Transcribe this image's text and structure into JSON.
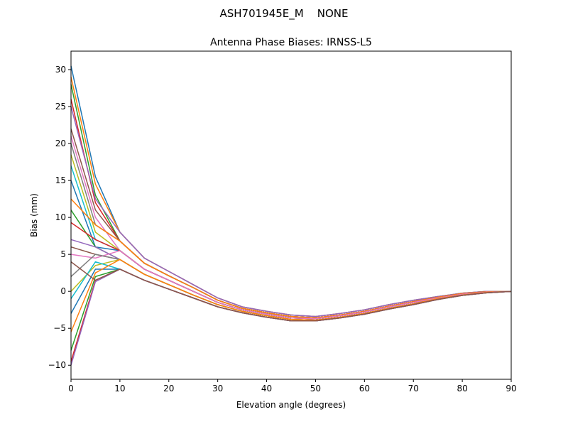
{
  "chart_data": {
    "type": "line",
    "suptitle": "ASH701945E_M    NONE",
    "title": "Antenna Phase Biases: IRNSS-L5",
    "xlabel": "Elevation angle (degrees)",
    "ylabel": "Bias (mm)",
    "xlim": [
      0,
      90
    ],
    "ylim": [
      -11.9,
      32.5
    ],
    "xticks": [
      0,
      10,
      20,
      30,
      40,
      50,
      60,
      70,
      80,
      90
    ],
    "yticks": [
      -10,
      -5,
      0,
      5,
      10,
      15,
      20,
      25,
      30
    ],
    "grid": false,
    "colors": [
      "#1f77b4",
      "#ff7f0e",
      "#2ca02c",
      "#d62728",
      "#9467bd",
      "#8c564b",
      "#e377c2",
      "#7f7f7f",
      "#bcbd22",
      "#17becf"
    ],
    "x": [
      0,
      5,
      10,
      15,
      20,
      25,
      30,
      35,
      40,
      45,
      50,
      55,
      60,
      65,
      70,
      75,
      80,
      85,
      90
    ],
    "series": [
      {
        "values": [
          30.5,
          15.5,
          8,
          4.5,
          2.7,
          0.9,
          -0.9,
          -2.1,
          -2.7,
          -3.2,
          -3.4,
          -3.0,
          -2.5,
          -1.8,
          -1.2,
          -0.7,
          -0.25,
          0,
          0
        ]
      },
      {
        "values": [
          29,
          14.5,
          8,
          4.5,
          2.7,
          0.9,
          -0.9,
          -2.1,
          -2.7,
          -3.2,
          -3.4,
          -3.0,
          -2.5,
          -1.8,
          -1.2,
          -0.7,
          -0.25,
          0,
          0
        ]
      },
      {
        "values": [
          28,
          13,
          6.8,
          3.8,
          2.1,
          0.5,
          -1.2,
          -2.3,
          -2.9,
          -3.4,
          -3.6,
          -3.2,
          -2.7,
          -2.0,
          -1.4,
          -0.8,
          -0.3,
          -0.05,
          0
        ]
      },
      {
        "values": [
          26,
          12,
          6.8,
          3.8,
          2.1,
          0.5,
          -1.2,
          -2.3,
          -2.9,
          -3.4,
          -3.6,
          -3.2,
          -2.7,
          -2.0,
          -1.4,
          -0.8,
          -0.3,
          -0.05,
          0
        ]
      },
      {
        "values": [
          25,
          12.5,
          8,
          4.5,
          2.7,
          0.9,
          -0.9,
          -2.1,
          -2.7,
          -3.2,
          -3.4,
          -3.0,
          -2.5,
          -1.8,
          -1.2,
          -0.7,
          -0.25,
          0,
          0
        ]
      },
      {
        "values": [
          22,
          11,
          6.8,
          3.8,
          2.1,
          0.5,
          -1.2,
          -2.3,
          -2.9,
          -3.4,
          -3.6,
          -3.2,
          -2.7,
          -2.0,
          -1.4,
          -0.8,
          -0.3,
          -0.05,
          0
        ]
      },
      {
        "values": [
          21,
          10,
          5.5,
          3.0,
          1.5,
          0,
          -1.5,
          -2.5,
          -3.1,
          -3.6,
          -3.7,
          -3.3,
          -2.8,
          -2.1,
          -1.5,
          -0.9,
          -0.4,
          -0.1,
          0
        ]
      },
      {
        "values": [
          20,
          9,
          6.8,
          3.8,
          2.1,
          0.5,
          -1.2,
          -2.3,
          -2.9,
          -3.4,
          -3.6,
          -3.2,
          -2.7,
          -2.0,
          -1.4,
          -0.8,
          -0.3,
          -0.05,
          0
        ]
      },
      {
        "values": [
          18.5,
          8,
          5.5,
          3.0,
          1.5,
          0,
          -1.5,
          -2.5,
          -3.1,
          -3.6,
          -3.7,
          -3.3,
          -2.8,
          -2.1,
          -1.5,
          -0.9,
          -0.4,
          -0.1,
          0
        ]
      },
      {
        "values": [
          17,
          7,
          5.5,
          3.0,
          1.5,
          0,
          -1.5,
          -2.5,
          -3.1,
          -3.6,
          -3.7,
          -3.3,
          -2.8,
          -2.1,
          -1.5,
          -0.9,
          -0.4,
          -0.1,
          0
        ]
      },
      {
        "values": [
          15,
          6,
          5.5,
          3.0,
          1.5,
          0,
          -1.5,
          -2.5,
          -3.1,
          -3.6,
          -3.7,
          -3.3,
          -2.8,
          -2.1,
          -1.5,
          -0.9,
          -0.4,
          -0.1,
          0
        ]
      },
      {
        "values": [
          12.5,
          9,
          6.8,
          3.8,
          2.1,
          0.5,
          -1.2,
          -2.3,
          -2.9,
          -3.4,
          -3.6,
          -3.2,
          -2.7,
          -2.0,
          -1.4,
          -0.8,
          -0.3,
          -0.05,
          0
        ]
      },
      {
        "values": [
          11,
          6,
          4.3,
          2.3,
          0.9,
          -0.5,
          -1.8,
          -2.7,
          -3.3,
          -3.8,
          -3.9,
          -3.5,
          -3.0,
          -2.3,
          -1.7,
          -1.0,
          -0.5,
          -0.15,
          0
        ]
      },
      {
        "values": [
          9.3,
          7,
          5.5,
          3.0,
          1.5,
          0,
          -1.5,
          -2.5,
          -3.1,
          -3.6,
          -3.7,
          -3.3,
          -2.8,
          -2.1,
          -1.5,
          -0.9,
          -0.4,
          -0.1,
          0
        ]
      },
      {
        "values": [
          7,
          6,
          4.3,
          2.3,
          0.9,
          -0.5,
          -1.8,
          -2.7,
          -3.3,
          -3.8,
          -3.9,
          -3.5,
          -3.0,
          -2.3,
          -1.7,
          -1.0,
          -0.5,
          -0.15,
          0
        ]
      },
      {
        "values": [
          6,
          5,
          4.3,
          2.3,
          0.9,
          -0.5,
          -1.8,
          -2.7,
          -3.3,
          -3.8,
          -3.9,
          -3.5,
          -3.0,
          -2.3,
          -1.7,
          -1.0,
          -0.5,
          -0.15,
          0
        ]
      },
      {
        "values": [
          5,
          4.5,
          5.5,
          3.0,
          1.5,
          0,
          -1.5,
          -2.5,
          -3.1,
          -3.6,
          -3.7,
          -3.3,
          -2.8,
          -2.1,
          -1.5,
          -0.9,
          -0.4,
          -0.1,
          0
        ]
      },
      {
        "values": [
          2,
          5,
          4.3,
          2.3,
          0.9,
          -0.5,
          -1.8,
          -2.7,
          -3.3,
          -3.8,
          -3.9,
          -3.5,
          -3.0,
          -2.3,
          -1.7,
          -1.0,
          -0.5,
          -0.15,
          0
        ]
      },
      {
        "values": [
          0,
          3.5,
          4.3,
          2.3,
          0.9,
          -0.5,
          -1.8,
          -2.7,
          -3.3,
          -3.8,
          -3.9,
          -3.5,
          -3.0,
          -2.3,
          -1.7,
          -1.0,
          -0.5,
          -0.15,
          0
        ]
      },
      {
        "values": [
          -1,
          4,
          3.0,
          1.5,
          0.3,
          -0.9,
          -2.1,
          -2.9,
          -3.5,
          -4.0,
          -4.0,
          -3.6,
          -3.1,
          -2.4,
          -1.8,
          -1.1,
          -0.55,
          -0.2,
          0
        ]
      },
      {
        "values": [
          -3,
          3,
          3.0,
          1.5,
          0.3,
          -0.9,
          -2.1,
          -2.9,
          -3.5,
          -4.0,
          -4.0,
          -3.6,
          -3.1,
          -2.4,
          -1.8,
          -1.1,
          -0.55,
          -0.2,
          0
        ]
      },
      {
        "values": [
          -5.5,
          2.5,
          4.3,
          2.3,
          0.9,
          -0.5,
          -1.8,
          -2.7,
          -3.3,
          -3.8,
          -3.9,
          -3.5,
          -3.0,
          -2.3,
          -1.7,
          -1.0,
          -0.5,
          -0.15,
          0
        ]
      },
      {
        "values": [
          -8,
          2,
          3.0,
          1.5,
          0.3,
          -0.9,
          -2.1,
          -2.9,
          -3.5,
          -4.0,
          -4.0,
          -3.6,
          -3.1,
          -2.4,
          -1.8,
          -1.1,
          -0.55,
          -0.2,
          0
        ]
      },
      {
        "values": [
          -9.5,
          1.5,
          3.0,
          1.5,
          0.3,
          -0.9,
          -2.1,
          -2.9,
          -3.5,
          -4.0,
          -4.0,
          -3.6,
          -3.1,
          -2.4,
          -1.8,
          -1.1,
          -0.55,
          -0.2,
          0
        ]
      },
      {
        "values": [
          -10,
          1.3,
          3.0,
          1.5,
          0.3,
          -0.9,
          -2.1,
          -2.9,
          -3.5,
          -4.0,
          -4.0,
          -3.6,
          -3.1,
          -2.4,
          -1.8,
          -1.1,
          -0.55,
          -0.2,
          0
        ]
      },
      {
        "values": [
          4,
          1.5,
          3.0,
          1.5,
          0.3,
          -0.9,
          -2.1,
          -2.9,
          -3.5,
          -4.0,
          -4.0,
          -3.6,
          -3.1,
          -2.4,
          -1.8,
          -1.1,
          -0.55,
          -0.2,
          0
        ]
      }
    ]
  }
}
